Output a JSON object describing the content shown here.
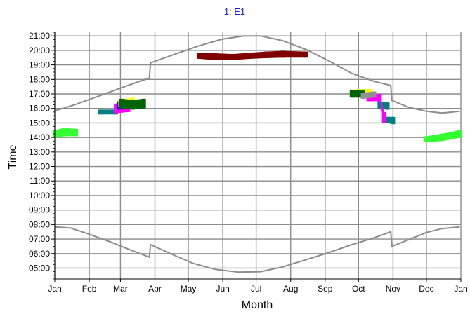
{
  "chart_data": {
    "type": "scatter",
    "title": "1: E1",
    "title_color": "#1f1fd6",
    "xlabel": "Month",
    "ylabel": "Time",
    "x_tick_labels": [
      "Jan",
      "Feb",
      "Mar",
      "Apr",
      "May",
      "Jun",
      "Jul",
      "Aug",
      "Sep",
      "Oct",
      "Nov",
      "Dec",
      "Jan"
    ],
    "y_tick_labels": [
      "05:00",
      "06:00",
      "07:00",
      "08:00",
      "09:00",
      "10:00",
      "11:00",
      "12:00",
      "13:00",
      "14:00",
      "15:00",
      "16:00",
      "17:00",
      "18:00",
      "19:00",
      "20:00",
      "21:00"
    ],
    "xlim": [
      "Jan 1",
      "Jan 1 (next year)"
    ],
    "ylim": [
      "04:15",
      "21:15"
    ],
    "grid": true,
    "legend": "none",
    "colors": {
      "grid": "#8c8c8c",
      "sun_curve": "#8c8c8c",
      "axis": "#000000"
    },
    "sun_curves": [
      {
        "role": "sunset",
        "points": [
          [
            "Jan 1",
            "15:50"
          ],
          [
            "Jan 20",
            "16:17"
          ],
          [
            "Feb 10",
            "16:52"
          ],
          [
            "Mar 1",
            "17:24"
          ],
          [
            "Mar 20",
            "17:55"
          ],
          [
            "Mar 27",
            "18:05"
          ],
          [
            "Mar 28",
            "19:08"
          ],
          [
            "Apr 1",
            "19:15"
          ],
          [
            "Apr 20",
            "19:46"
          ],
          [
            "May 10",
            "20:18"
          ],
          [
            "May 31",
            "20:46"
          ],
          [
            "Jun 20",
            "21:00"
          ],
          [
            "Jul 5",
            "21:00"
          ],
          [
            "Jul 25",
            "20:40"
          ],
          [
            "Aug 15",
            "20:03"
          ],
          [
            "Sep 5",
            "19:15"
          ],
          [
            "Sep 25",
            "18:25"
          ],
          [
            "Oct 15",
            "17:52"
          ],
          [
            "Oct 30",
            "17:35"
          ],
          [
            "Oct 31",
            "16:33"
          ],
          [
            "Nov 15",
            "16:05"
          ],
          [
            "Dec 1",
            "15:48"
          ],
          [
            "Dec 15",
            "15:41"
          ],
          [
            "Dec 31",
            "15:48"
          ]
        ]
      },
      {
        "role": "sunrise",
        "points": [
          [
            "Jan 1",
            "07:50"
          ],
          [
            "Jan 15",
            "07:46"
          ],
          [
            "Feb 1",
            "07:20"
          ],
          [
            "Feb 20",
            "06:48"
          ],
          [
            "Mar 10",
            "06:15"
          ],
          [
            "Mar 27",
            "05:45"
          ],
          [
            "Mar 28",
            "06:37"
          ],
          [
            "Apr 15",
            "06:00"
          ],
          [
            "May 5",
            "05:20"
          ],
          [
            "May 25",
            "04:55"
          ],
          [
            "Jun 15",
            "04:43"
          ],
          [
            "Jul 5",
            "04:45"
          ],
          [
            "Jul 25",
            "05:05"
          ],
          [
            "Aug 15",
            "05:35"
          ],
          [
            "Sep 5",
            "06:05"
          ],
          [
            "Sep 25",
            "06:37"
          ],
          [
            "Oct 15",
            "07:05"
          ],
          [
            "Oct 30",
            "07:30"
          ],
          [
            "Oct 31",
            "06:30"
          ],
          [
            "Nov 15",
            "06:57"
          ],
          [
            "Dec 1",
            "07:27"
          ],
          [
            "Dec 15",
            "07:43"
          ],
          [
            "Dec 31",
            "07:50"
          ]
        ]
      }
    ],
    "series": [
      {
        "color": "#800000",
        "points": [
          [
            "May 11",
            "19:25"
          ],
          [
            "May 11",
            "19:50"
          ],
          [
            "May 25",
            "19:20"
          ],
          [
            "May 25",
            "19:48"
          ],
          [
            "Jun 10",
            "19:20"
          ],
          [
            "Jun 10",
            "19:45"
          ],
          [
            "Jun 25",
            "19:25"
          ],
          [
            "Jun 25",
            "19:50"
          ],
          [
            "Jul 10",
            "19:28"
          ],
          [
            "Jul 10",
            "19:55"
          ],
          [
            "Jul 25",
            "19:30"
          ],
          [
            "Jul 25",
            "19:58"
          ],
          [
            "Aug 15",
            "19:30"
          ],
          [
            "Aug 15",
            "19:55"
          ]
        ]
      },
      {
        "color": "#33ff33",
        "points": [
          [
            "Jan 1",
            "14:00"
          ],
          [
            "Jan 1",
            "14:30"
          ],
          [
            "Jan 10",
            "14:05"
          ],
          [
            "Jan 10",
            "14:40"
          ],
          [
            "Jan 20",
            "14:05"
          ],
          [
            "Jan 20",
            "14:35"
          ],
          [
            "Dec 1",
            "13:40"
          ],
          [
            "Dec 1",
            "14:05"
          ],
          [
            "Dec 15",
            "13:45"
          ],
          [
            "Dec 15",
            "14:15"
          ],
          [
            "Dec 31",
            "13:58"
          ],
          [
            "Dec 31",
            "14:30"
          ]
        ]
      },
      {
        "color": "#008080",
        "points": [
          [
            "Feb 11",
            "15:35"
          ],
          [
            "Feb 11",
            "15:55"
          ],
          [
            "Feb 25",
            "15:35"
          ],
          [
            "Feb 25",
            "15:55"
          ],
          [
            "Oct 20",
            "16:00"
          ],
          [
            "Oct 20",
            "16:30"
          ],
          [
            "Oct 27",
            "15:55"
          ],
          [
            "Oct 27",
            "16:25"
          ],
          [
            "Oct 26",
            "15:00"
          ],
          [
            "Oct 26",
            "15:25"
          ],
          [
            "Nov 1",
            "14:55"
          ],
          [
            "Nov 1",
            "15:25"
          ]
        ]
      },
      {
        "color": "#ff00ff",
        "points": [
          [
            "Feb 25",
            "15:40"
          ],
          [
            "Feb 25",
            "16:20"
          ],
          [
            "Mar 8",
            "15:45"
          ],
          [
            "Mar 8",
            "16:30"
          ],
          [
            "Oct 10",
            "16:30"
          ],
          [
            "Oct 10",
            "17:00"
          ],
          [
            "Oct 20",
            "16:30"
          ],
          [
            "Oct 20",
            "17:00"
          ],
          [
            "Oct 24",
            "15:00"
          ],
          [
            "Oct 24",
            "15:45"
          ]
        ]
      },
      {
        "color": "#1010ff",
        "points": [
          [
            "Feb 28",
            "15:55"
          ],
          [
            "Feb 28",
            "16:30"
          ],
          [
            "Mar 10",
            "16:00"
          ],
          [
            "Mar 10",
            "16:40"
          ]
        ]
      },
      {
        "color": "#ffff00",
        "points": [
          [
            "Mar 1",
            "16:05"
          ],
          [
            "Mar 1",
            "16:35"
          ],
          [
            "Mar 12",
            "16:10"
          ],
          [
            "Mar 12",
            "16:45"
          ],
          [
            "Oct 1",
            "16:55"
          ],
          [
            "Oct 1",
            "17:20"
          ],
          [
            "Oct 12",
            "16:55"
          ],
          [
            "Oct 12",
            "17:20"
          ]
        ]
      },
      {
        "color": "#006400",
        "points": [
          [
            "Mar 2",
            "16:00"
          ],
          [
            "Mar 2",
            "16:40"
          ],
          [
            "Mar 12",
            "15:55"
          ],
          [
            "Mar 12",
            "16:35"
          ],
          [
            "Mar 22",
            "16:00"
          ],
          [
            "Mar 22",
            "16:40"
          ],
          [
            "Sep 25",
            "16:45"
          ],
          [
            "Sep 25",
            "17:15"
          ],
          [
            "Oct 5",
            "16:45"
          ],
          [
            "Oct 5",
            "17:15"
          ]
        ]
      },
      {
        "color": "#909090",
        "points": [
          [
            "Oct 5",
            "16:40"
          ],
          [
            "Oct 5",
            "17:05"
          ],
          [
            "Oct 15",
            "16:45"
          ],
          [
            "Oct 15",
            "17:10"
          ]
        ]
      }
    ]
  }
}
